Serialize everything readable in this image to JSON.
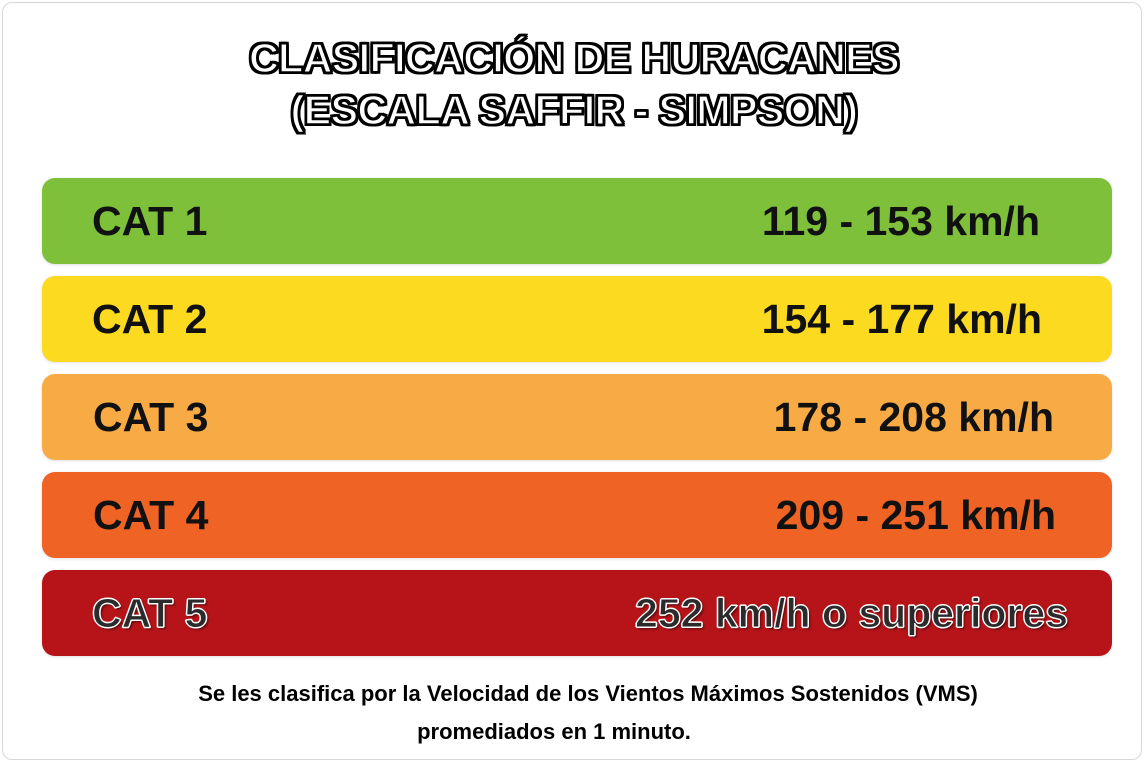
{
  "title": {
    "line1": "CLASIFICACIÓN DE HURACANES",
    "line2": "(ESCALA SAFFIR - SIMPSON)"
  },
  "categories": [
    {
      "label": "CAT 1",
      "speed": "119 - 153 km/h",
      "color": "#7ec03a"
    },
    {
      "label": "CAT 2",
      "speed": "154 - 177 km/h",
      "color": "#fcda1f"
    },
    {
      "label": "CAT 3",
      "speed": "178 - 208 km/h",
      "color": "#f8ab45"
    },
    {
      "label": "CAT 4",
      "speed": "209 - 251 km/h",
      "color": "#ef6424"
    },
    {
      "label": "CAT 5",
      "speed": "252 km/h o superiores",
      "color": "#b71419"
    }
  ],
  "note": {
    "line1": "Se les clasifica por la Velocidad de los Vientos Máximos Sostenidos (VMS)",
    "line2": "promediados en 1 minuto."
  }
}
